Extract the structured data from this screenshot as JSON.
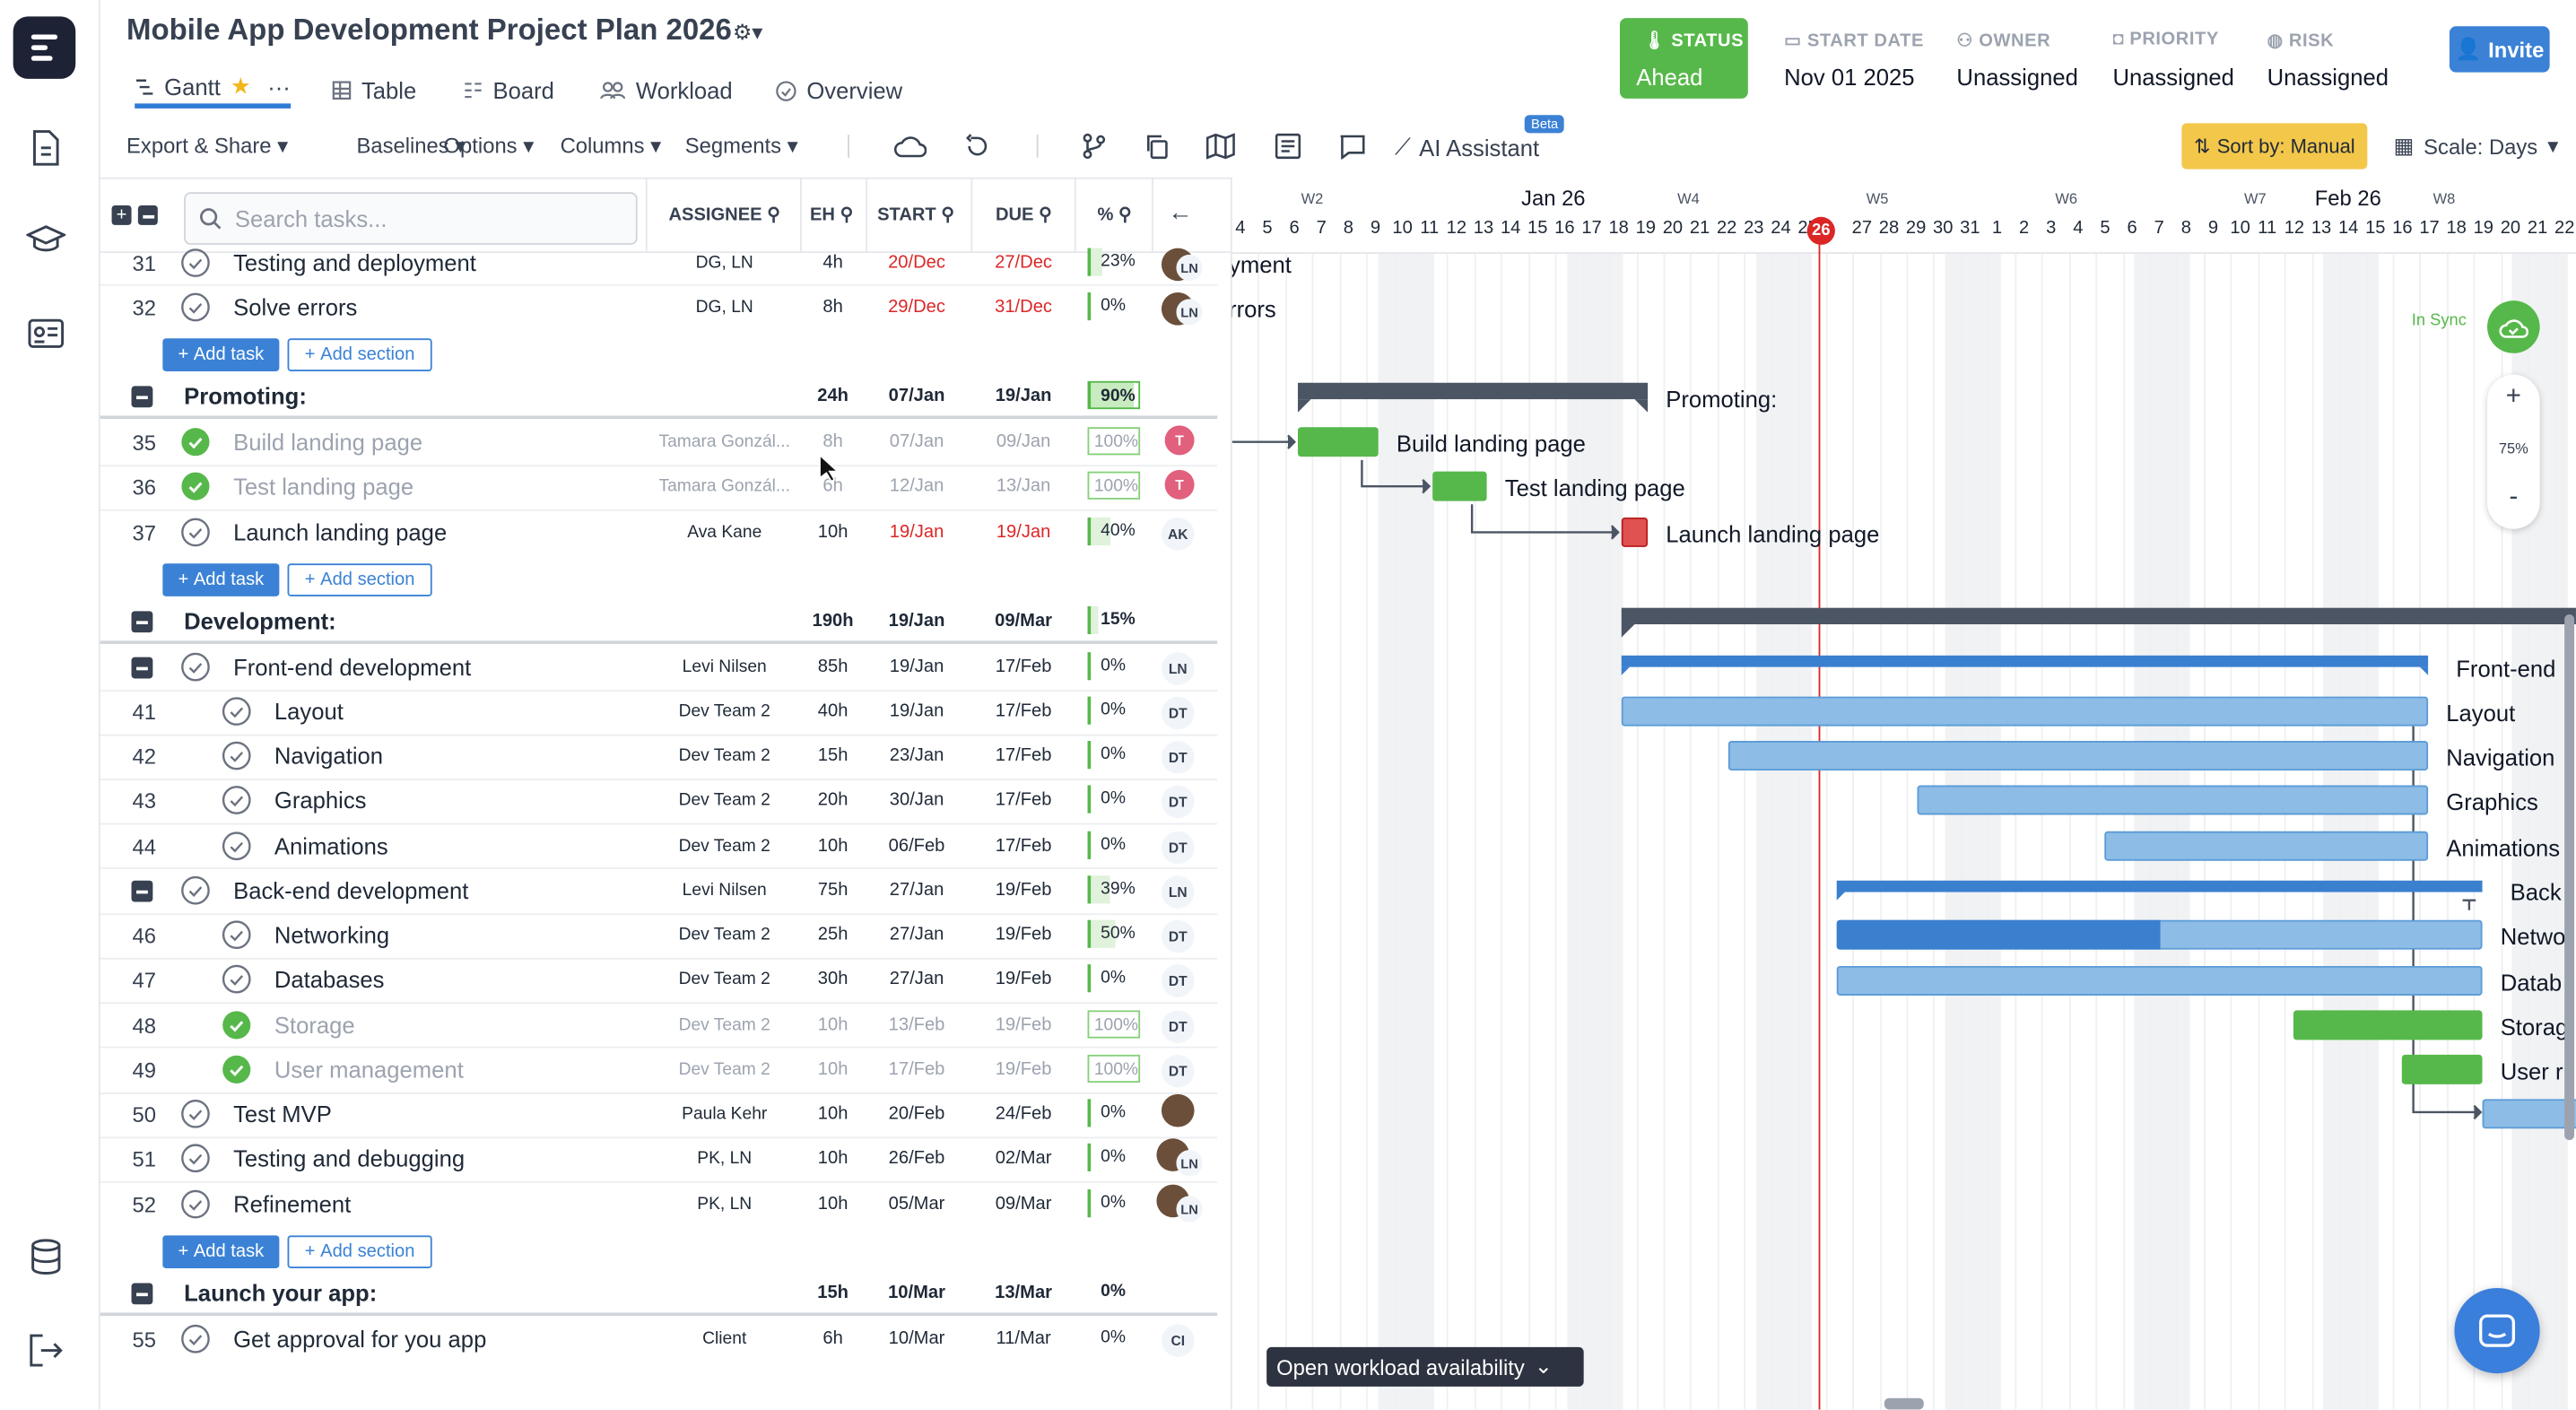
{
  "project_title": "Mobile App Development Project Plan 2026",
  "view_tabs": [
    {
      "label": "Gantt"
    },
    {
      "label": "Table"
    },
    {
      "label": "Board"
    },
    {
      "label": "Workload"
    },
    {
      "label": "Overview"
    }
  ],
  "status": {
    "label": "STATUS",
    "value": "Ahead"
  },
  "meta": [
    {
      "label": "START DATE",
      "value": "Nov 01 2025"
    },
    {
      "label": "OWNER",
      "value": "Unassigned"
    },
    {
      "label": "PRIORITY",
      "value": "Unassigned"
    },
    {
      "label": "RISK",
      "value": "Unassigned"
    }
  ],
  "invite_label": "Invite",
  "toolbar": {
    "export": "Export & Share",
    "baselines": "Baselines",
    "options": "Options",
    "columns": "Columns",
    "segments": "Segments",
    "ai_assistant": "AI Assistant",
    "beta": "Beta",
    "sort_by": "Sort by: Manual",
    "scale": "Scale: Days"
  },
  "search_placeholder": "Search tasks...",
  "columns": {
    "assignee": "ASSIGNEE",
    "eh": "EH",
    "start": "START",
    "due": "DUE",
    "pct": "%"
  },
  "buttons": {
    "add_task": "Add task",
    "add_section": "Add section"
  },
  "rows": [
    {
      "num": "31",
      "name": "Testing and deployment",
      "assignee": "DG, LN",
      "eh": "4h",
      "start": "20/Dec",
      "due": "27/Dec",
      "pct": "23%"
    },
    {
      "num": "32",
      "name": "Solve errors",
      "assignee": "DG, LN",
      "eh": "8h",
      "start": "29/Dec",
      "due": "31/Dec",
      "pct": "0%"
    },
    {
      "num": "",
      "name": "Promoting:",
      "assignee": "",
      "eh": "24h",
      "start": "07/Jan",
      "due": "19/Jan",
      "pct": "90%"
    },
    {
      "num": "35",
      "name": "Build landing page",
      "assignee": "Tamara Gonzál...",
      "eh": "8h",
      "start": "07/Jan",
      "due": "09/Jan",
      "pct": "100%",
      "avatar": "T"
    },
    {
      "num": "36",
      "name": "Test landing page",
      "assignee": "Tamara Gonzál...",
      "eh": "6h",
      "start": "12/Jan",
      "due": "13/Jan",
      "pct": "100%",
      "avatar": "T"
    },
    {
      "num": "37",
      "name": "Launch landing page",
      "assignee": "Ava Kane",
      "eh": "10h",
      "start": "19/Jan",
      "due": "19/Jan",
      "pct": "40%",
      "avatar": "AK"
    },
    {
      "num": "",
      "name": "Development:",
      "assignee": "",
      "eh": "190h",
      "start": "19/Jan",
      "due": "09/Mar",
      "pct": "15%"
    },
    {
      "num": "",
      "name": "Front-end development",
      "assignee": "Levi Nilsen",
      "eh": "85h",
      "start": "19/Jan",
      "due": "17/Feb",
      "pct": "0%",
      "avatar": "LN"
    },
    {
      "num": "41",
      "name": "Layout",
      "assignee": "Dev Team 2",
      "eh": "40h",
      "start": "19/Jan",
      "due": "17/Feb",
      "pct": "0%",
      "avatar": "DT"
    },
    {
      "num": "42",
      "name": "Navigation",
      "assignee": "Dev Team 2",
      "eh": "15h",
      "start": "23/Jan",
      "due": "17/Feb",
      "pct": "0%",
      "avatar": "DT"
    },
    {
      "num": "43",
      "name": "Graphics",
      "assignee": "Dev Team 2",
      "eh": "20h",
      "start": "30/Jan",
      "due": "17/Feb",
      "pct": "0%",
      "avatar": "DT"
    },
    {
      "num": "44",
      "name": "Animations",
      "assignee": "Dev Team 2",
      "eh": "10h",
      "start": "06/Feb",
      "due": "17/Feb",
      "pct": "0%",
      "avatar": "DT"
    },
    {
      "num": "",
      "name": "Back-end development",
      "assignee": "Levi Nilsen",
      "eh": "75h",
      "start": "27/Jan",
      "due": "19/Feb",
      "pct": "39%",
      "avatar": "LN"
    },
    {
      "num": "46",
      "name": "Networking",
      "assignee": "Dev Team 2",
      "eh": "25h",
      "start": "27/Jan",
      "due": "19/Feb",
      "pct": "50%",
      "avatar": "DT"
    },
    {
      "num": "47",
      "name": "Databases",
      "assignee": "Dev Team 2",
      "eh": "30h",
      "start": "27/Jan",
      "due": "19/Feb",
      "pct": "0%",
      "avatar": "DT"
    },
    {
      "num": "48",
      "name": "Storage",
      "assignee": "Dev Team 2",
      "eh": "10h",
      "start": "13/Feb",
      "due": "19/Feb",
      "pct": "100%",
      "avatar": "DT"
    },
    {
      "num": "49",
      "name": "User management",
      "assignee": "Dev Team 2",
      "eh": "10h",
      "start": "17/Feb",
      "due": "19/Feb",
      "pct": "100%",
      "avatar": "DT"
    },
    {
      "num": "50",
      "name": "Test MVP",
      "assignee": "Paula Kehr",
      "eh": "10h",
      "start": "20/Feb",
      "due": "24/Feb",
      "pct": "0%"
    },
    {
      "num": "51",
      "name": "Testing and debugging",
      "assignee": "PK, LN",
      "eh": "10h",
      "start": "26/Feb",
      "due": "02/Mar",
      "pct": "0%"
    },
    {
      "num": "52",
      "name": "Refinement",
      "assignee": "PK, LN",
      "eh": "10h",
      "start": "05/Mar",
      "due": "09/Mar",
      "pct": "0%"
    },
    {
      "num": "",
      "name": "Launch your app:",
      "assignee": "",
      "eh": "15h",
      "start": "10/Mar",
      "due": "13/Mar",
      "pct": "0%"
    },
    {
      "num": "55",
      "name": "Get approval for you app",
      "assignee": "Client",
      "eh": "6h",
      "start": "10/Mar",
      "due": "11/Mar",
      "pct": "0%",
      "avatar": "CI"
    }
  ],
  "timeline": {
    "month_labels": [
      "Jan 26",
      "Feb 26"
    ],
    "week_labels": [
      "W2",
      "W4",
      "W5",
      "W6",
      "W7",
      "W8"
    ],
    "days": [
      "4",
      "5",
      "6",
      "7",
      "8",
      "9",
      "10",
      "11",
      "12",
      "13",
      "14",
      "15",
      "16",
      "17",
      "18",
      "19",
      "20",
      "21",
      "22",
      "23",
      "24",
      "25",
      "26",
      "27",
      "28",
      "29",
      "30",
      "31",
      "1",
      "2",
      "3",
      "4",
      "5",
      "6",
      "7",
      "8",
      "9",
      "10",
      "11",
      "12",
      "13",
      "14",
      "15",
      "16",
      "17",
      "18",
      "19",
      "20",
      "21",
      "22"
    ],
    "today": "26",
    "bar_labels": [
      "yment",
      "rrors",
      "Promoting:",
      "Build landing page",
      "Test landing page",
      "Launch landing page",
      "Front-end",
      "Layout",
      "Navigation",
      "Graphics",
      "Animations",
      "Back",
      "Netwo",
      "Datab",
      "Storag",
      "User r"
    ]
  },
  "sync_label": "In Sync",
  "zoom": {
    "plus": "+",
    "level": "75%",
    "minus": "-"
  },
  "workload_button": "Open workload availability"
}
